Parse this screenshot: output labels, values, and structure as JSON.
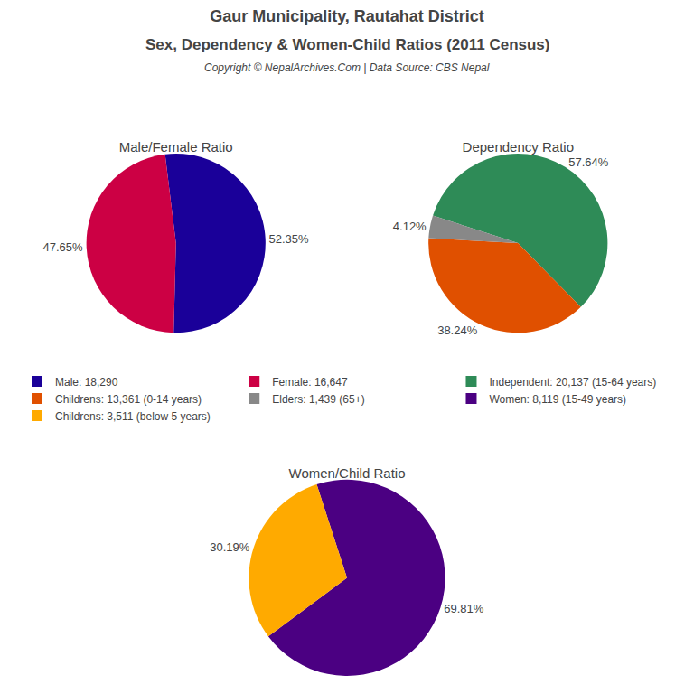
{
  "title": "Gaur Municipality, Rautahat District",
  "subtitle": "Sex, Dependency & Women-Child Ratios (2011 Census)",
  "annotations": [
    "Copyright © NepalArchives.Com | Data Source: CBS Nepal"
  ],
  "legend": "center",
  "chart_data": [
    {
      "type": "pie",
      "title": "Male/Female Ratio",
      "categories": [
        "Male: 18,290",
        "Female: 16,647"
      ],
      "values": [
        52.35,
        47.65
      ],
      "value_labels": [
        "52.35%",
        "47.65%"
      ],
      "colors": [
        "#1a0099",
        "#cc0044"
      ],
      "data_labels": true
    },
    {
      "type": "pie",
      "title": "Dependency Ratio",
      "categories": [
        "Independent: 20,137 (15-64 years)",
        "Childrens: 13,361 (0-14 years)",
        "Elders: 1,439 (65+)"
      ],
      "values": [
        57.64,
        38.24,
        4.12
      ],
      "value_labels": [
        "57.64%",
        "38.24%",
        "4.12%"
      ],
      "colors": [
        "#2e8b57",
        "#e05000",
        "#888888"
      ],
      "data_labels": true
    },
    {
      "type": "pie",
      "title": "Women/Child Ratio",
      "categories": [
        "Women: 8,119 (15-49 years)",
        "Childrens: 3,511 (below 5 years)"
      ],
      "values": [
        69.81,
        30.19
      ],
      "value_labels": [
        "69.81%",
        "30.19%"
      ],
      "colors": [
        "#4b0082",
        "#ffaa00"
      ],
      "data_labels": true
    }
  ]
}
